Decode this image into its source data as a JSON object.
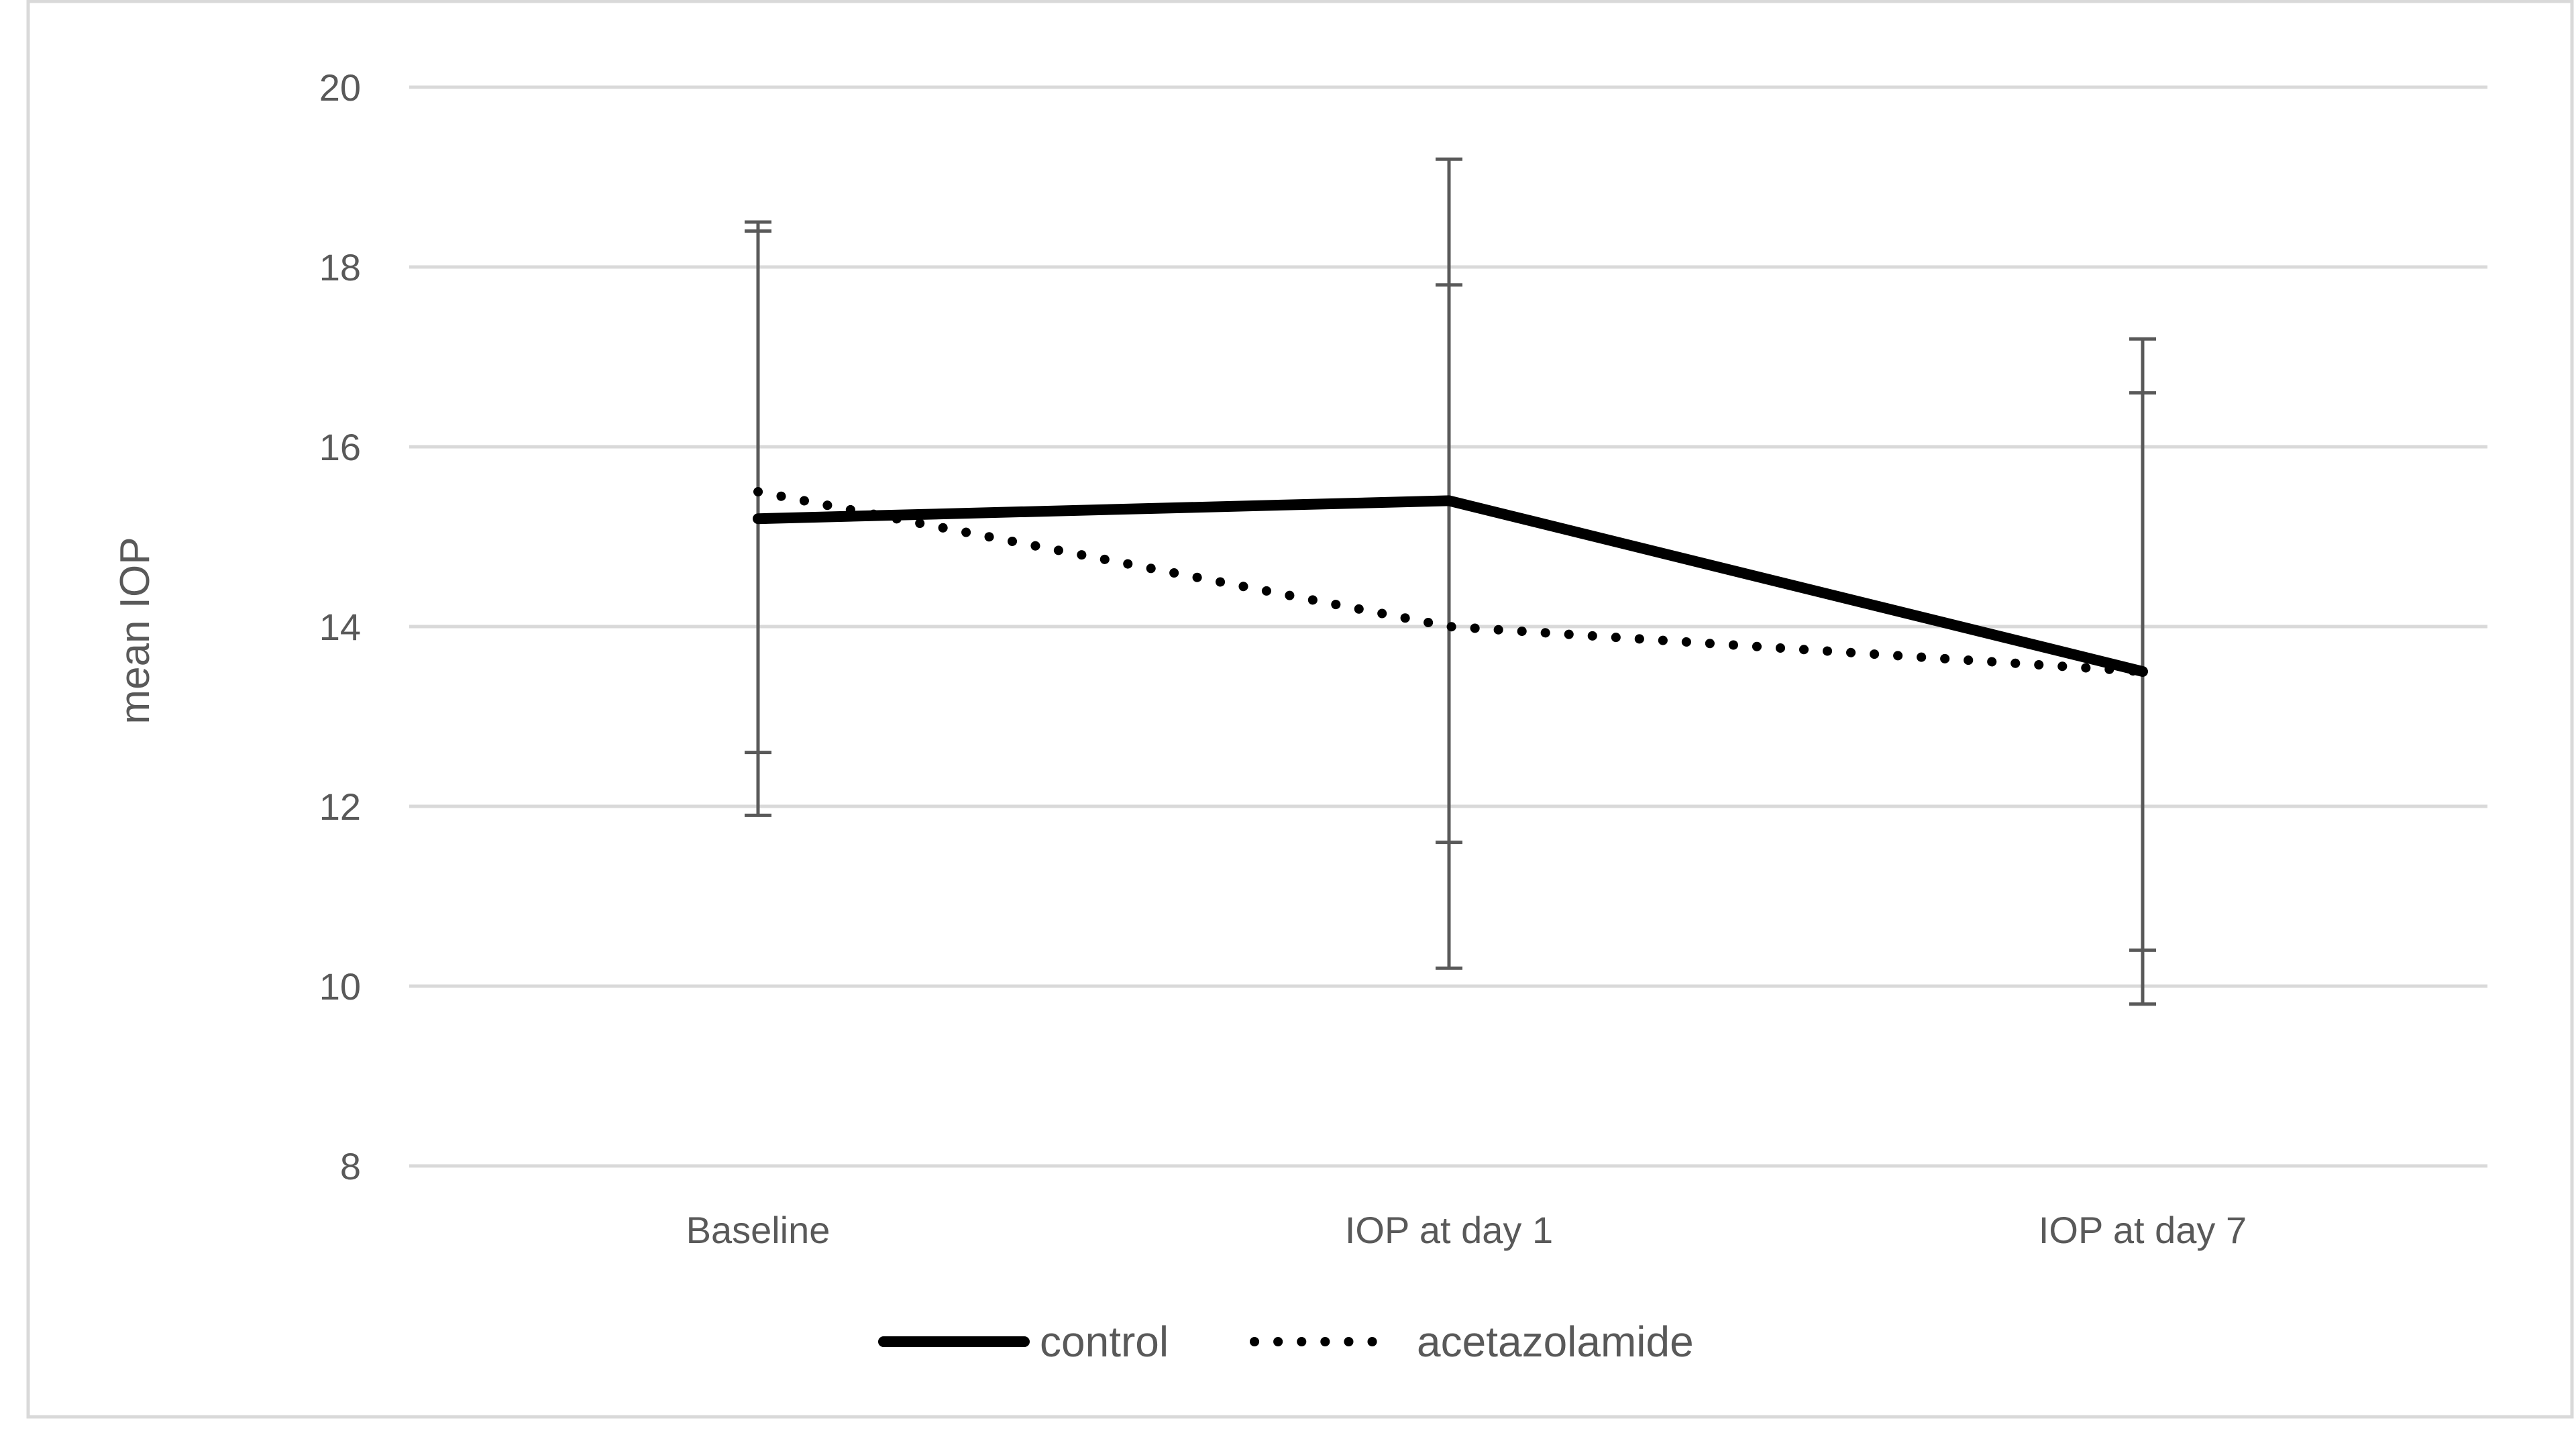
{
  "chart_data": {
    "type": "line",
    "title": "",
    "xlabel": "",
    "ylabel": "mean IOP",
    "categories": [
      "Baseline",
      "IOP at day 1",
      "IOP at day 7"
    ],
    "ylim": [
      8,
      20
    ],
    "yticks": [
      8,
      10,
      12,
      14,
      16,
      18,
      20
    ],
    "ytick_labels": [
      "8",
      "10",
      "12",
      "14",
      "16",
      "18",
      "20"
    ],
    "grid": "horizontal",
    "legend": "bottom",
    "series": [
      {
        "name": "control",
        "style": "solid",
        "color": "#000000",
        "values": [
          15.2,
          15.4,
          13.5
        ],
        "error_low": [
          11.9,
          10.2,
          9.8
        ],
        "error_high": [
          18.5,
          19.2,
          17.2
        ]
      },
      {
        "name": "acetazolamide",
        "style": "dotted",
        "color": "#000000",
        "values": [
          15.5,
          14.0,
          13.5
        ],
        "error_low": [
          12.6,
          11.6,
          10.4
        ],
        "error_high": [
          18.4,
          17.8,
          16.6
        ]
      }
    ],
    "colors": {
      "gridline": "#d9d9d9",
      "error_bar": "#595959",
      "text": "#595959",
      "frame": "#d9d9d9"
    }
  }
}
